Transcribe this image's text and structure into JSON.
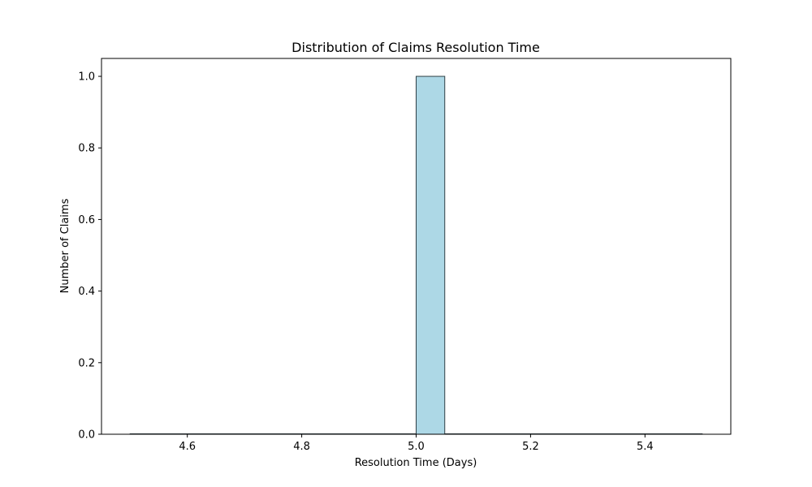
{
  "chart_data": {
    "type": "bar",
    "title": "Distribution of Claims Resolution Time",
    "xlabel": "Resolution Time (Days)",
    "ylabel": "Number of Claims",
    "xlim": [
      4.45,
      5.55
    ],
    "ylim": [
      0,
      1.05
    ],
    "bin_edges": [
      4.5,
      4.55,
      4.6,
      4.65,
      4.7,
      4.75,
      4.8,
      4.85,
      4.9,
      4.95,
      5.0,
      5.05,
      5.1,
      5.15,
      5.2,
      5.25,
      5.3,
      5.35,
      5.4,
      5.45,
      5.5
    ],
    "counts": [
      0,
      0,
      0,
      0,
      0,
      0,
      0,
      0,
      0,
      0,
      1,
      0,
      0,
      0,
      0,
      0,
      0,
      0,
      0,
      0
    ],
    "x_ticks": [
      4.6,
      4.8,
      5.0,
      5.2,
      5.4
    ],
    "x_tick_labels": [
      "4.6",
      "4.8",
      "5.0",
      "5.2",
      "5.4"
    ],
    "y_ticks": [
      0,
      0.2,
      0.4,
      0.6,
      0.8,
      1.0
    ],
    "y_tick_labels": [
      "0.0",
      "0.2",
      "0.4",
      "0.6",
      "0.8",
      "1.0"
    ],
    "grid": false,
    "bar_color": "#add8e6",
    "bar_edge_color": "#2f3f46"
  }
}
